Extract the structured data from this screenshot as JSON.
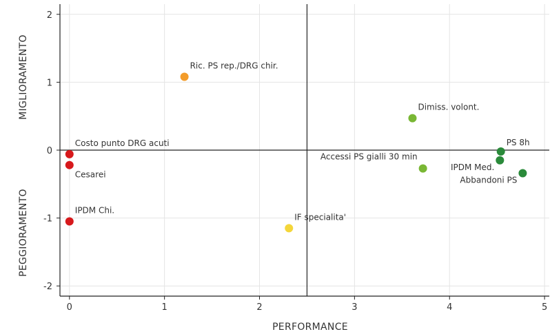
{
  "chart_data": {
    "type": "scatter",
    "xlabel": "PERFORMANCE",
    "ylabel_top": "MIGLIORAMENTO",
    "ylabel_bottom": "PEGGIORAMENTO",
    "xlim": [
      -0.1,
      5.05
    ],
    "ylim": [
      -2.15,
      2.15
    ],
    "x_ticks": [
      0,
      1,
      2,
      3,
      4,
      5
    ],
    "y_ticks": [
      -2,
      -1,
      0,
      1,
      2
    ],
    "x_ticks_labels": [
      "0",
      "1",
      "2",
      "3",
      "4",
      "5"
    ],
    "y_ticks_labels": [
      "-2",
      "-1",
      "0",
      "1",
      "2"
    ],
    "grid": true,
    "reference_lines": {
      "x": 2.5,
      "y": 0
    },
    "points": [
      {
        "label": "Ric. PS rep./DRG chir.",
        "x": 1.21,
        "y": 1.08,
        "color": "#f39c2a",
        "label_pos": "above"
      },
      {
        "label": "Dimiss. volont.",
        "x": 3.61,
        "y": 0.47,
        "color": "#79b734",
        "label_pos": "above"
      },
      {
        "label": "Costo punto DRG acuti",
        "x": 0.0,
        "y": -0.06,
        "color": "#d7191c",
        "label_pos": "above"
      },
      {
        "label": "Cesarei",
        "x": 0.0,
        "y": -0.22,
        "color": "#d7191c",
        "label_pos": "below"
      },
      {
        "label": "IPDM Chi.",
        "x": 0.0,
        "y": -1.05,
        "color": "#d7191c",
        "label_pos": "above"
      },
      {
        "label": "IF specialita'",
        "x": 2.31,
        "y": -1.15,
        "color": "#f4d63a",
        "label_pos": "above"
      },
      {
        "label": "Accessi PS gialli 30 min",
        "x": 3.72,
        "y": -0.27,
        "color": "#79b734",
        "label_pos": "upper-left"
      },
      {
        "label": "PS 8h",
        "x": 4.54,
        "y": -0.02,
        "color": "#2a8a3a",
        "label_pos": "above-right"
      },
      {
        "label": "IPDM Med.",
        "x": 4.53,
        "y": -0.15,
        "color": "#2a8a3a",
        "label_pos": "lower-left"
      },
      {
        "label": "Abbandoni PS",
        "x": 4.77,
        "y": -0.34,
        "color": "#2a8a3a",
        "label_pos": "lower-left"
      }
    ]
  }
}
